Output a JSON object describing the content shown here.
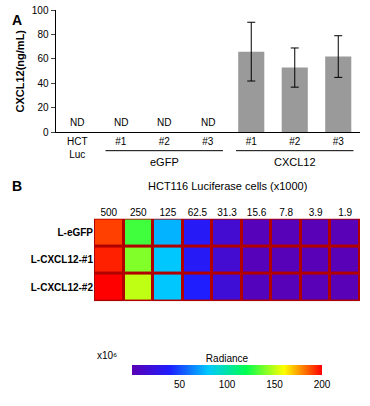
{
  "chart_data": [
    {
      "type": "bar",
      "title": "A",
      "y_label": "CXCL12(ng/mL)",
      "categories": [
        "HCT Luc",
        "#1",
        "#2",
        "#3",
        "#1",
        "#2",
        "#3"
      ],
      "values": [
        null,
        null,
        null,
        null,
        66,
        53,
        62
      ],
      "value_labels": [
        "ND",
        "ND",
        "ND",
        "ND",
        null,
        null,
        null
      ],
      "errors": [
        null,
        null,
        null,
        null,
        24,
        16,
        17
      ],
      "groups": [
        {
          "name": "eGFP",
          "from": 1,
          "to": 3
        },
        {
          "name": "CXCL12",
          "from": 4,
          "to": 6
        }
      ],
      "color": "#9a9a9a",
      "ylim": [
        0,
        100
      ],
      "yticks": [
        0,
        20,
        40,
        60,
        80,
        100
      ],
      "grid": false
    },
    {
      "type": "heatmap",
      "title": "B",
      "x_label": "HCT116 Luciferase cells (x1000)",
      "categories": [
        "500",
        "250",
        "125",
        "62.5",
        "31.3",
        "15.6",
        "7.8",
        "3.9",
        "1.9"
      ],
      "rows": [
        "L-eGFP",
        "L-CXCL12-#1",
        "L-CXCL12-#2"
      ],
      "cells": [
        [
          190,
          130,
          75,
          35,
          15,
          3,
          2,
          1,
          1
        ],
        [
          195,
          140,
          80,
          35,
          15,
          3,
          2,
          1,
          1
        ],
        [
          200,
          150,
          80,
          40,
          18,
          4,
          2,
          1,
          1
        ]
      ],
      "colorbar": {
        "title": "Radiance",
        "unit": "x10⁶",
        "range": [
          0,
          200
        ],
        "ticks": [
          50,
          100,
          150,
          200
        ]
      }
    }
  ]
}
